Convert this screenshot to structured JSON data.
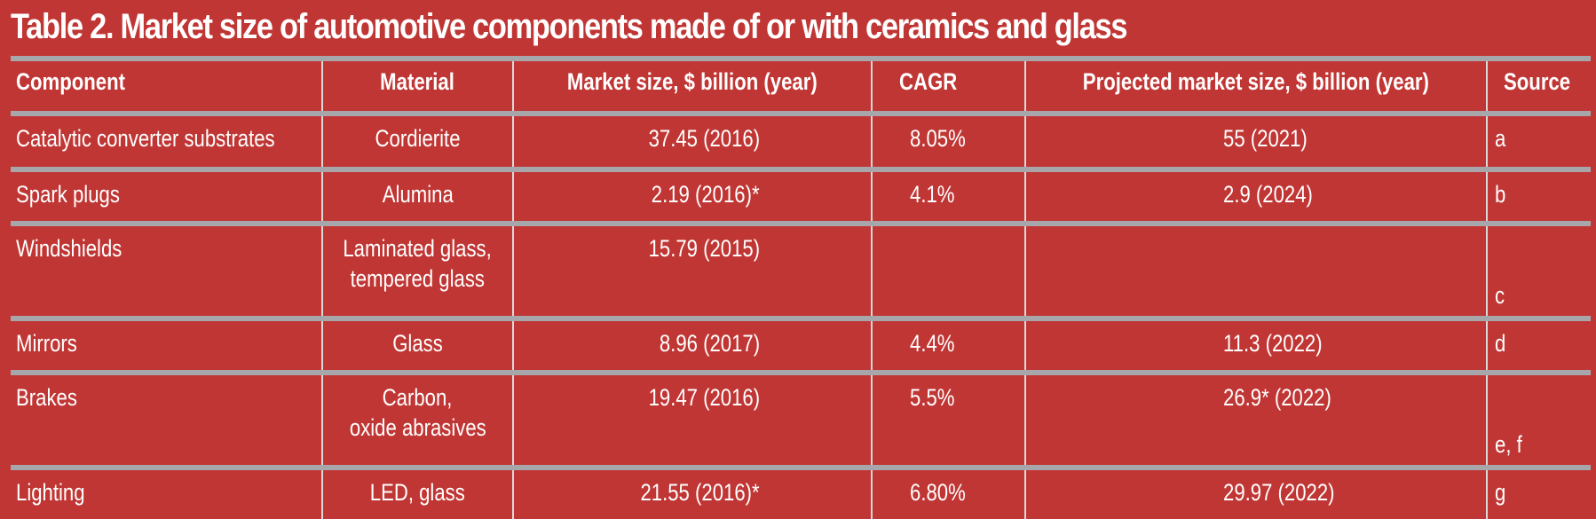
{
  "title": "Table 2. Market size of automotive components made of or with ceramics and glass",
  "colors": {
    "background": "#c03634",
    "rule": "#a7a7ab",
    "text": "#ffffff"
  },
  "headers": [
    "Component",
    "Material",
    "Market size, $ billion (year)",
    "CAGR",
    "Projected market size, $ billion (year)",
    "Source"
  ],
  "rows": [
    {
      "component": "Catalytic converter substrates",
      "material": "Cordierite",
      "market_size": "37.45 (2016)",
      "cagr": "8.05%",
      "projected": "55 (2021)",
      "source": "a"
    },
    {
      "component": "Spark plugs",
      "material": "Alumina",
      "market_size": "2.19 (2016)*",
      "cagr": "4.1%",
      "projected": "2.9 (2024)",
      "source": "b"
    },
    {
      "component": "Windshields",
      "material": "Laminated glass,\ntempered glass",
      "market_size": "15.79 (2015)",
      "cagr": "",
      "projected": "",
      "source": "c"
    },
    {
      "component": "Mirrors",
      "material": "Glass",
      "market_size": "8.96 (2017)",
      "cagr": "4.4%",
      "projected": "11.3 (2022)",
      "source": "d"
    },
    {
      "component": "Brakes",
      "material": "Carbon,\noxide abrasives",
      "market_size": "19.47 (2016)",
      "cagr": "5.5%",
      "projected": "26.9* (2022)",
      "source": "e, f"
    },
    {
      "component": "Lighting",
      "material": "LED, glass",
      "market_size": "21.55 (2016)*",
      "cagr": "6.80%",
      "projected": "29.97 (2022)",
      "source": "g"
    }
  ]
}
